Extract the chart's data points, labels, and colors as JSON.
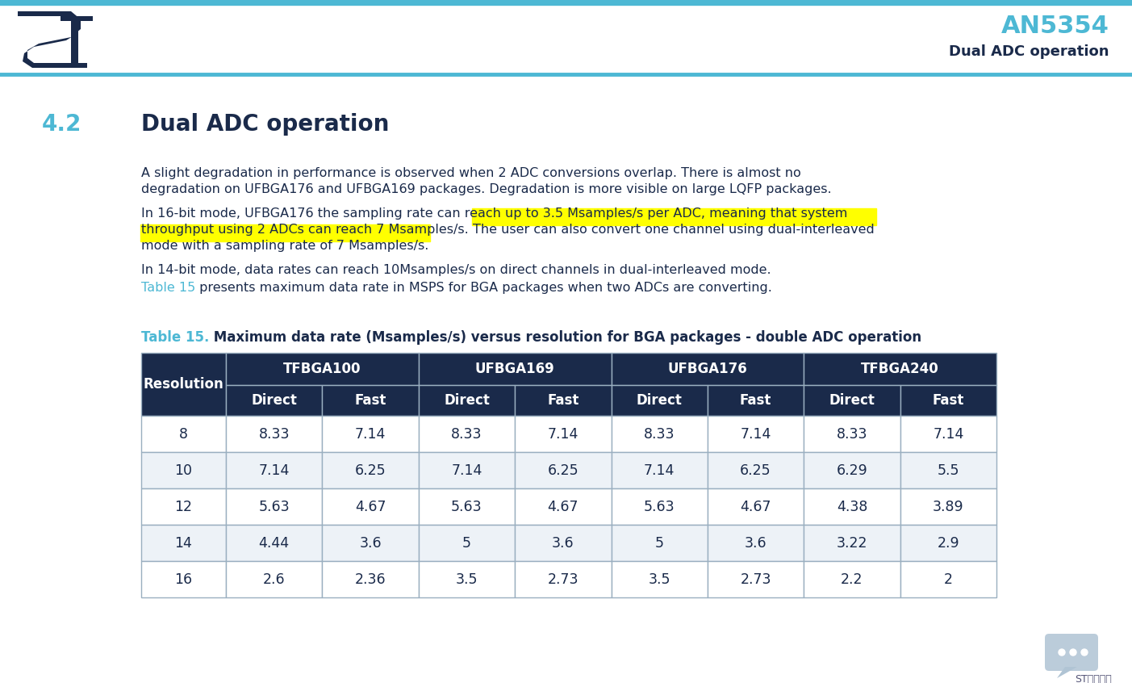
{
  "bg_color": "#ffffff",
  "header_bar_color": "#4db8d4",
  "header_logo_color": "#1a2a4a",
  "header_title": "AN5354",
  "header_subtitle": "Dual ADC operation",
  "header_title_color": "#4db8d4",
  "header_subtitle_color": "#1a2a4a",
  "section_number": "4.2",
  "section_number_color": "#4db8d4",
  "section_title": "Dual ADC operation",
  "section_title_color": "#1a2a4a",
  "para1_l1": "A slight degradation in performance is observed when 2 ADC conversions overlap. There is almost no",
  "para1_l2": "degradation on UFBGA176 and UFBGA169 packages. Degradation is more visible on large LQFP packages.",
  "para2_l1": "In 16-bit mode, UFBGA176 the sampling rate can reach up to 3.5 Msamples/s per ADC, meaning that system",
  "para2_l2_normal": "throughput using 2 ADCs can reach 7 Msamples/s. ",
  "para2_l2_highlight": "The user can also convert one channel using dual-interleaved",
  "para2_l3_highlight": "mode with a sampling rate of 7 Msamples/s.",
  "highlight_color": "#ffff00",
  "para3": "In 14-bit mode, data rates can reach 10Msamples/s on direct channels in dual-interleaved mode.",
  "para4_link": "Table 15",
  "para4_link_color": "#4db8d4",
  "para4_rest": " presents maximum data rate in MSPS for BGA packages when two ADCs are converting.",
  "table_title_prefix": "Table 15.",
  "table_title_prefix_color": "#4db8d4",
  "table_title_rest": " Maximum data rate (Msamples/s) versus resolution for BGA packages - double ADC operation",
  "table_title_color": "#1a2a4a",
  "table_header_bg": "#1a2a4a",
  "table_header_text": "#ffffff",
  "table_row_bg_odd": "#ffffff",
  "table_row_bg_even": "#edf2f7",
  "table_border_color": "#9aafc0",
  "col_groups": [
    "TFBGA100",
    "UFBGA169",
    "UFBGA176",
    "TFBGA240"
  ],
  "col_subheaders": [
    "Direct",
    "Fast",
    "Direct",
    "Fast",
    "Direct",
    "Fast",
    "Direct",
    "Fast"
  ],
  "row_labels": [
    "8",
    "10",
    "12",
    "14",
    "16"
  ],
  "table_data": [
    [
      "8.33",
      "7.14",
      "8.33",
      "7.14",
      "8.33",
      "7.14",
      "8.33",
      "7.14"
    ],
    [
      "7.14",
      "6.25",
      "7.14",
      "6.25",
      "7.14",
      "6.25",
      "6.29",
      "5.5"
    ],
    [
      "5.63",
      "4.67",
      "5.63",
      "4.67",
      "5.63",
      "4.67",
      "4.38",
      "3.89"
    ],
    [
      "4.44",
      "3.6",
      "5",
      "3.6",
      "5",
      "3.6",
      "3.22",
      "2.9"
    ],
    [
      "2.6",
      "2.36",
      "3.5",
      "2.73",
      "3.5",
      "2.73",
      "2.2",
      "2"
    ]
  ],
  "text_color": "#1a2a4a",
  "body_fontsize": 11.5,
  "footer_text": "ST中文论坛",
  "bubble_color": "#b0c4d4",
  "bubble_dot_color": "#ffffff"
}
